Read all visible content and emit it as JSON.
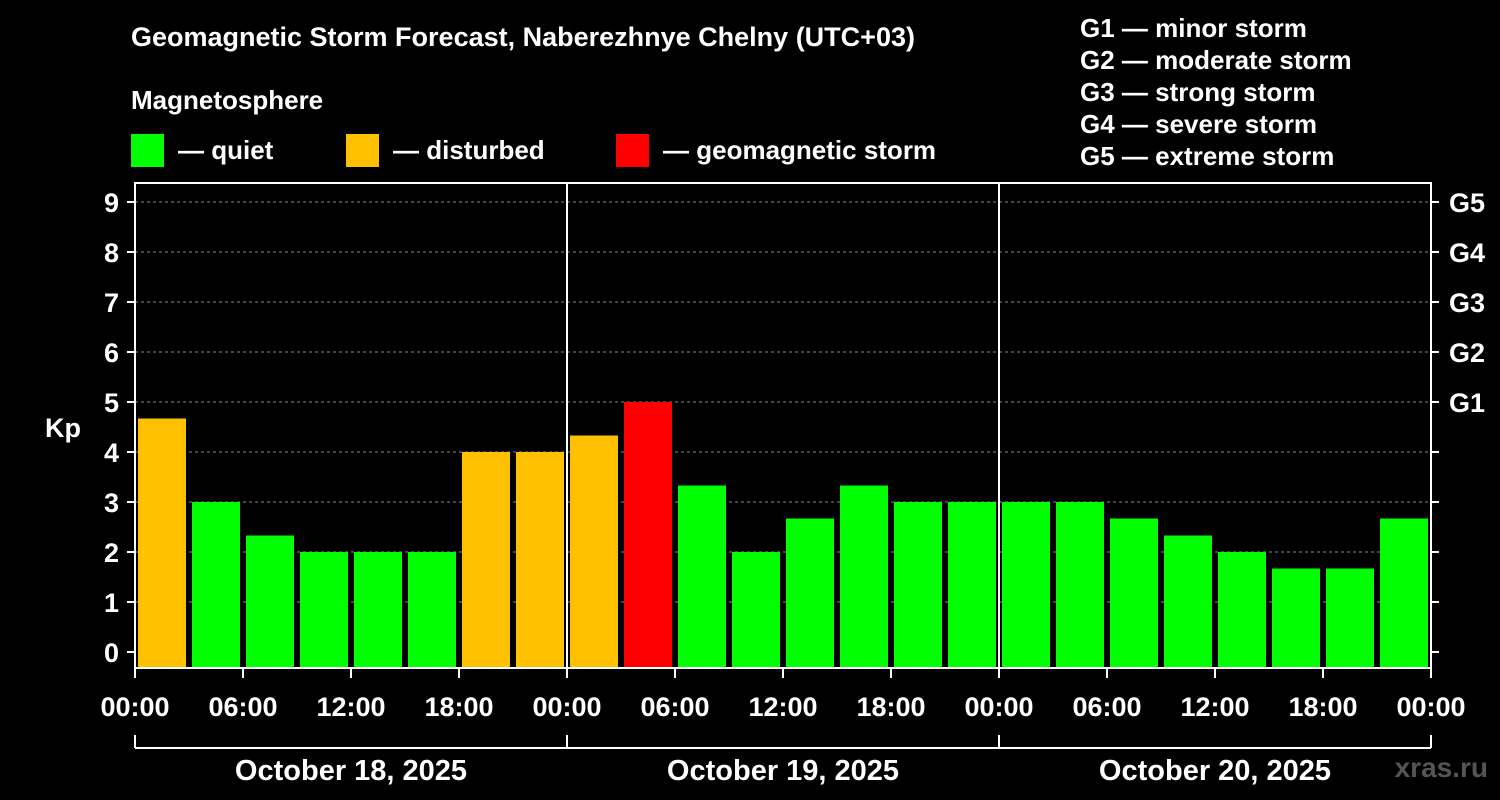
{
  "header": {
    "title": "Geomagnetic Storm Forecast, Naberezhnye Chelny (UTC+03)",
    "magnetosphere_label": "Magnetosphere"
  },
  "legend": [
    {
      "label": "— quiet",
      "color": "#00ff00"
    },
    {
      "label": "— disturbed",
      "color": "#ffc000"
    },
    {
      "label": "— geomagnetic storm",
      "color": "#ff0000"
    }
  ],
  "g_scale": [
    "G1 — minor storm",
    "G2 — moderate storm",
    "G3 — strong storm",
    "G4 — severe storm",
    "G5 — extreme storm"
  ],
  "watermark": "xras.ru",
  "chart_data": {
    "type": "bar",
    "ylabel": "Kp",
    "ylim": [
      0,
      9
    ],
    "yticks": [
      0,
      1,
      2,
      3,
      4,
      5,
      6,
      7,
      8,
      9
    ],
    "right_axis_labels": [
      {
        "kp": 5,
        "label": "G1"
      },
      {
        "kp": 6,
        "label": "G2"
      },
      {
        "kp": 7,
        "label": "G3"
      },
      {
        "kp": 8,
        "label": "G4"
      },
      {
        "kp": 9,
        "label": "G5"
      }
    ],
    "x_tick_labels": [
      "00:00",
      "06:00",
      "12:00",
      "18:00",
      "00:00",
      "06:00",
      "12:00",
      "18:00",
      "00:00",
      "06:00",
      "12:00",
      "18:00",
      "00:00"
    ],
    "days": [
      "October 18, 2025",
      "October 19, 2025",
      "October 20, 2025"
    ],
    "interval_hours": 3,
    "values": [
      4.67,
      3.0,
      2.33,
      2.0,
      2.0,
      2.0,
      4.0,
      4.0,
      4.33,
      5.0,
      3.33,
      2.0,
      2.67,
      3.33,
      3.0,
      3.0,
      3.0,
      3.0,
      2.67,
      2.33,
      2.0,
      1.67,
      1.67,
      2.67
    ],
    "status": [
      "disturbed",
      "quiet",
      "quiet",
      "quiet",
      "quiet",
      "quiet",
      "disturbed",
      "disturbed",
      "disturbed",
      "storm",
      "quiet",
      "quiet",
      "quiet",
      "quiet",
      "quiet",
      "quiet",
      "quiet",
      "quiet",
      "quiet",
      "quiet",
      "quiet",
      "quiet",
      "quiet",
      "quiet"
    ],
    "colors": {
      "quiet": "#00ff00",
      "disturbed": "#ffc000",
      "storm": "#ff0000"
    },
    "grid": true
  }
}
